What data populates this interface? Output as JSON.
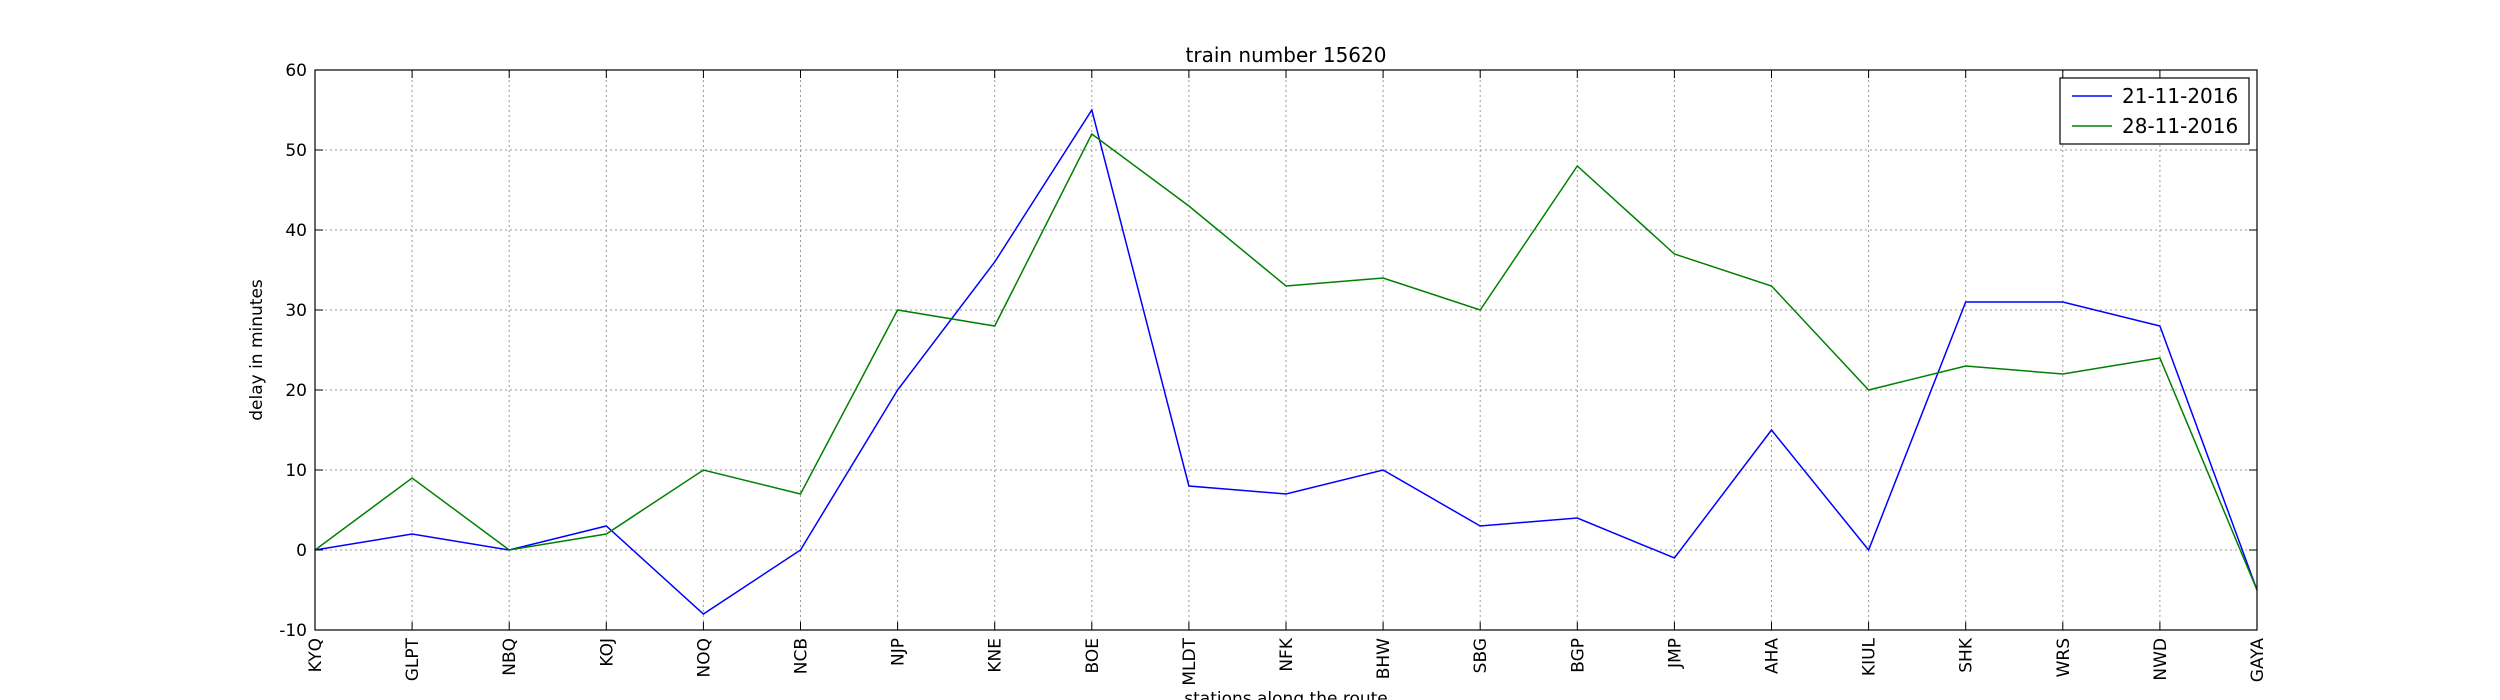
{
  "chart_data": {
    "type": "line",
    "title": "train number 15620",
    "xlabel": "stations along the route",
    "ylabel": "delay in minutes",
    "categories": [
      "KYQ",
      "GLPT",
      "NBQ",
      "KOJ",
      "NOQ",
      "NCB",
      "NJP",
      "KNE",
      "BOE",
      "MLDT",
      "NFK",
      "BHW",
      "SBG",
      "BGP",
      "JMP",
      "AHA",
      "KIUL",
      "SHK",
      "WRS",
      "NWD",
      "GAYA"
    ],
    "ylim": [
      -10,
      60
    ],
    "yticks": [
      -10,
      0,
      10,
      20,
      30,
      40,
      50,
      60
    ],
    "grid": true,
    "legend_position": "top-right",
    "series": [
      {
        "name": "21-11-2016",
        "color": "#0000ff",
        "values": [
          0,
          2,
          0,
          3,
          -8,
          0,
          20,
          36,
          55,
          8,
          7,
          10,
          3,
          4,
          -1,
          15,
          0,
          31,
          31,
          28,
          -5
        ]
      },
      {
        "name": "28-11-2016",
        "color": "#008000",
        "values": [
          0,
          9,
          0,
          2,
          10,
          7,
          30,
          28,
          52,
          43,
          33,
          34,
          30,
          48,
          37,
          33,
          20,
          23,
          22,
          24,
          -5
        ]
      }
    ]
  }
}
